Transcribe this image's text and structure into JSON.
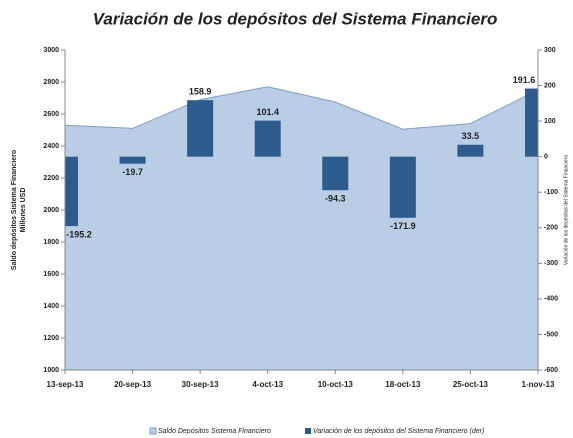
{
  "chart_data": {
    "type": "area_bar",
    "title": "Variación de los depósitos del Sistema Financiero",
    "ylabel": [
      "Saldo depósitos Sistema Financiero",
      "Millones USD"
    ],
    "y2label": "Variación de los depósitos del Sistema Financiero",
    "categories": [
      "13-sep-13",
      "20-sep-13",
      "30-sep-13",
      "4-oct-13",
      "10-oct-13",
      "18-oct-13",
      "25-oct-13",
      "1-nov-13"
    ],
    "series": [
      {
        "name": "Saldo Depósitos Sistema Financiero",
        "type": "area",
        "color": "#b9cde5",
        "values": [
          2530,
          2510,
          2690,
          2770,
          2675,
          2505,
          2540,
          2750
        ]
      },
      {
        "name": "Variación de los depósitos del Sistema Financiero (der)",
        "type": "bar",
        "axis": "y2",
        "color": "#2d5b8e",
        "values": [
          -195.2,
          -19.7,
          158.9,
          101.4,
          -94.3,
          -171.9,
          33.5,
          191.6
        ]
      }
    ],
    "ylim": [
      1000,
      3000
    ],
    "yticks": [
      1000,
      1200,
      1400,
      1600,
      1800,
      2000,
      2200,
      2400,
      2600,
      2800,
      3000
    ],
    "y2lim": [
      -600,
      300
    ],
    "y2ticks": [
      -600,
      -500,
      -400,
      -300,
      -200,
      -100,
      0,
      100,
      200,
      300
    ],
    "legend": "bottom"
  }
}
